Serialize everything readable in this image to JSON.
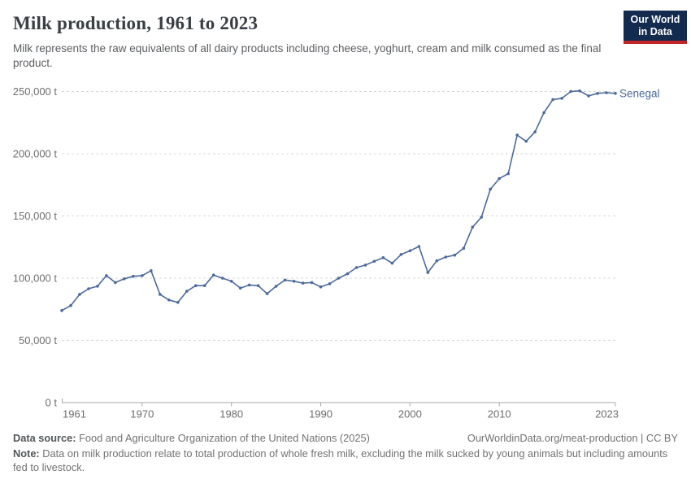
{
  "header": {
    "title": "Milk production, 1961 to 2023",
    "subtitle": "Milk represents the raw equivalents of all dairy products including cheese, yoghurt, cream and milk consumed as the final product.",
    "logo": {
      "line1": "Our World",
      "line2": "in Data",
      "bg_color": "#122B4E",
      "bar_color": "#C3262A"
    }
  },
  "chart_data": {
    "type": "line",
    "title": "Milk production, 1961 to 2023",
    "unit": "t",
    "entity_label": "Senegal",
    "line_color": "#4C6A9C",
    "grid": "horizontal-dashed",
    "grid_color": "#d8d8d8",
    "axis_color": "#a8a8a8",
    "legend_position": "end-of-line-label",
    "xlim": [
      1961,
      2023
    ],
    "ylim": [
      0,
      250000
    ],
    "x_ticks": [
      1961,
      1970,
      1980,
      1990,
      2000,
      2010,
      2023
    ],
    "y_ticks": [
      0,
      50000,
      100000,
      150000,
      200000,
      250000
    ],
    "y_tick_suffix": " t",
    "series": [
      {
        "name": "Senegal",
        "color": "#4C6A9C",
        "x": [
          1961,
          1962,
          1963,
          1964,
          1965,
          1966,
          1967,
          1968,
          1969,
          1970,
          1971,
          1972,
          1973,
          1974,
          1975,
          1976,
          1977,
          1978,
          1979,
          1980,
          1981,
          1982,
          1983,
          1984,
          1985,
          1986,
          1987,
          1988,
          1989,
          1990,
          1991,
          1992,
          1993,
          1994,
          1995,
          1996,
          1997,
          1998,
          1999,
          2000,
          2001,
          2002,
          2003,
          2004,
          2005,
          2006,
          2007,
          2008,
          2009,
          2010,
          2011,
          2012,
          2013,
          2014,
          2015,
          2016,
          2017,
          2018,
          2019,
          2020,
          2021,
          2022,
          2023
        ],
        "values": [
          74000,
          78000,
          87000,
          91500,
          93500,
          102000,
          96500,
          99500,
          101500,
          102000,
          106000,
          87000,
          82500,
          80500,
          89500,
          94000,
          94000,
          102500,
          100000,
          97500,
          92000,
          94500,
          94000,
          87500,
          93500,
          98500,
          97500,
          96000,
          96500,
          93000,
          95500,
          100000,
          103500,
          108500,
          110500,
          113500,
          116500,
          112000,
          119000,
          122000,
          125500,
          104500,
          114000,
          117000,
          118500,
          124000,
          141000,
          149000,
          171500,
          180000,
          184000,
          215000,
          210000,
          217500,
          233000,
          243500,
          244500,
          250000,
          250500,
          246500,
          248500,
          249000,
          248500
        ]
      }
    ]
  },
  "footer": {
    "datasource_label": "Data source:",
    "datasource_text": " Food and Agriculture Organization of the United Nations (2025)",
    "link": "OurWorldinData.org/meat-production | CC BY",
    "note_label": "Note:",
    "note_text": " Data on milk production relate to total production of whole fresh milk, excluding the milk sucked by young animals but including amounts fed to livestock."
  }
}
